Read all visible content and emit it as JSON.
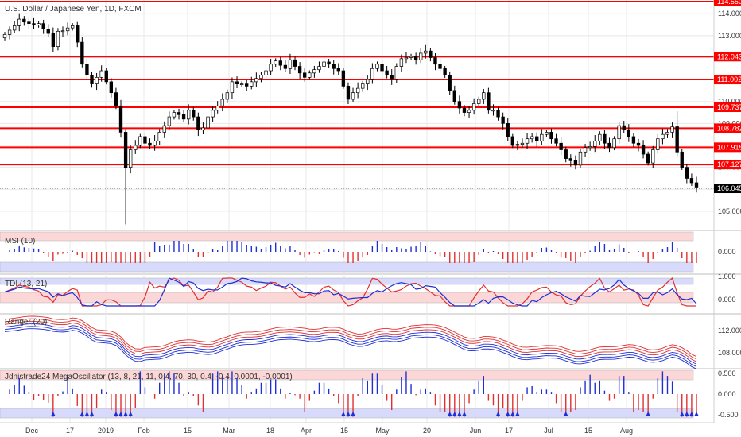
{
  "colors": {
    "up": "#ffffff",
    "down": "#000000",
    "level": "#ff0000",
    "blue": "#1f2fd6",
    "red": "#e03030",
    "band_red": "#fbd7d7",
    "band_blue": "#d7dafb",
    "grid": "#e8e8e8"
  },
  "chart_data": {
    "type": "candlestick",
    "title": "U.S. Dollar / Japanese Yen, 1D, FXCM",
    "price_axis": {
      "ticks": [
        "114.000",
        "113.000",
        "112.000",
        "111.000",
        "110.000",
        "109.000",
        "108.000",
        "107.000",
        "106.000",
        "105.000"
      ],
      "min": 104.2,
      "max": 114.55
    },
    "x_labels": [
      "Dec",
      "17",
      "2019",
      "Feb",
      "15",
      "Mar",
      "18",
      "Apr",
      "15",
      "May",
      "20",
      "Jun",
      "17",
      "Jul",
      "15",
      "Aug"
    ],
    "current_price": "106.045",
    "levels": [
      "114.550",
      "112.043",
      "111.002",
      "109.737",
      "108.782",
      "107.915",
      "107.127"
    ],
    "closes": [
      113.05,
      113.25,
      113.45,
      113.75,
      113.62,
      113.55,
      113.48,
      113.55,
      113.3,
      113.1,
      112.5,
      113.2,
      113.22,
      113.35,
      113.45,
      112.7,
      111.7,
      111.2,
      110.8,
      111.1,
      111.4,
      110.9,
      110.4,
      109.8,
      108.6,
      107.0,
      107.8,
      108.0,
      108.4,
      108.1,
      108.0,
      108.2,
      108.6,
      108.9,
      109.3,
      109.5,
      109.4,
      109.2,
      109.6,
      109.3,
      108.7,
      108.8,
      109.3,
      109.6,
      109.8,
      110.1,
      110.4,
      110.9,
      110.8,
      110.8,
      110.7,
      110.9,
      111.05,
      111.2,
      111.4,
      111.7,
      111.85,
      111.65,
      111.5,
      111.9,
      111.6,
      111.3,
      111.1,
      111.3,
      111.45,
      111.6,
      111.8,
      111.7,
      111.5,
      111.4,
      110.7,
      110.1,
      110.4,
      110.6,
      110.8,
      111.0,
      111.5,
      111.7,
      111.4,
      111.2,
      111.0,
      111.6,
      111.95,
      112.0,
      112.05,
      111.9,
      112.2,
      112.3,
      112.0,
      111.7,
      111.5,
      111.2,
      110.5,
      110.0,
      109.7,
      109.5,
      109.6,
      109.9,
      110.1,
      110.4,
      109.6,
      109.6,
      109.3,
      109.0,
      108.4,
      108.0,
      108.05,
      108.1,
      108.3,
      108.4,
      108.2,
      108.5,
      108.6,
      108.3,
      108.1,
      107.8,
      107.4,
      107.3,
      107.1,
      107.7,
      107.9,
      107.95,
      108.2,
      108.5,
      108.1,
      107.9,
      108.3,
      108.9,
      108.7,
      108.4,
      108.1,
      108.0,
      107.6,
      107.2,
      107.8,
      108.3,
      108.5,
      108.6,
      108.85,
      107.7,
      107.0,
      106.5,
      106.3,
      106.1
    ],
    "panels": [
      {
        "name": "MSI (10)",
        "value_label": "0.000",
        "ticks": [
          "0.000"
        ]
      },
      {
        "name": "TDI (13, 21)",
        "value_label": "0.000",
        "ticks": [
          "1.000",
          "0.000"
        ]
      },
      {
        "name": "Ranger (20)",
        "ticks": [
          "112.000",
          "108.000"
        ]
      },
      {
        "name": "Jdnistrade24 MegaOscillator (13, 8, 21, 11, 0.4, 70, 30, 0.4, -0.4, 0.0001, -0.0001)",
        "ticks": [
          "0.500",
          "0.000",
          "-0.500"
        ]
      }
    ]
  }
}
